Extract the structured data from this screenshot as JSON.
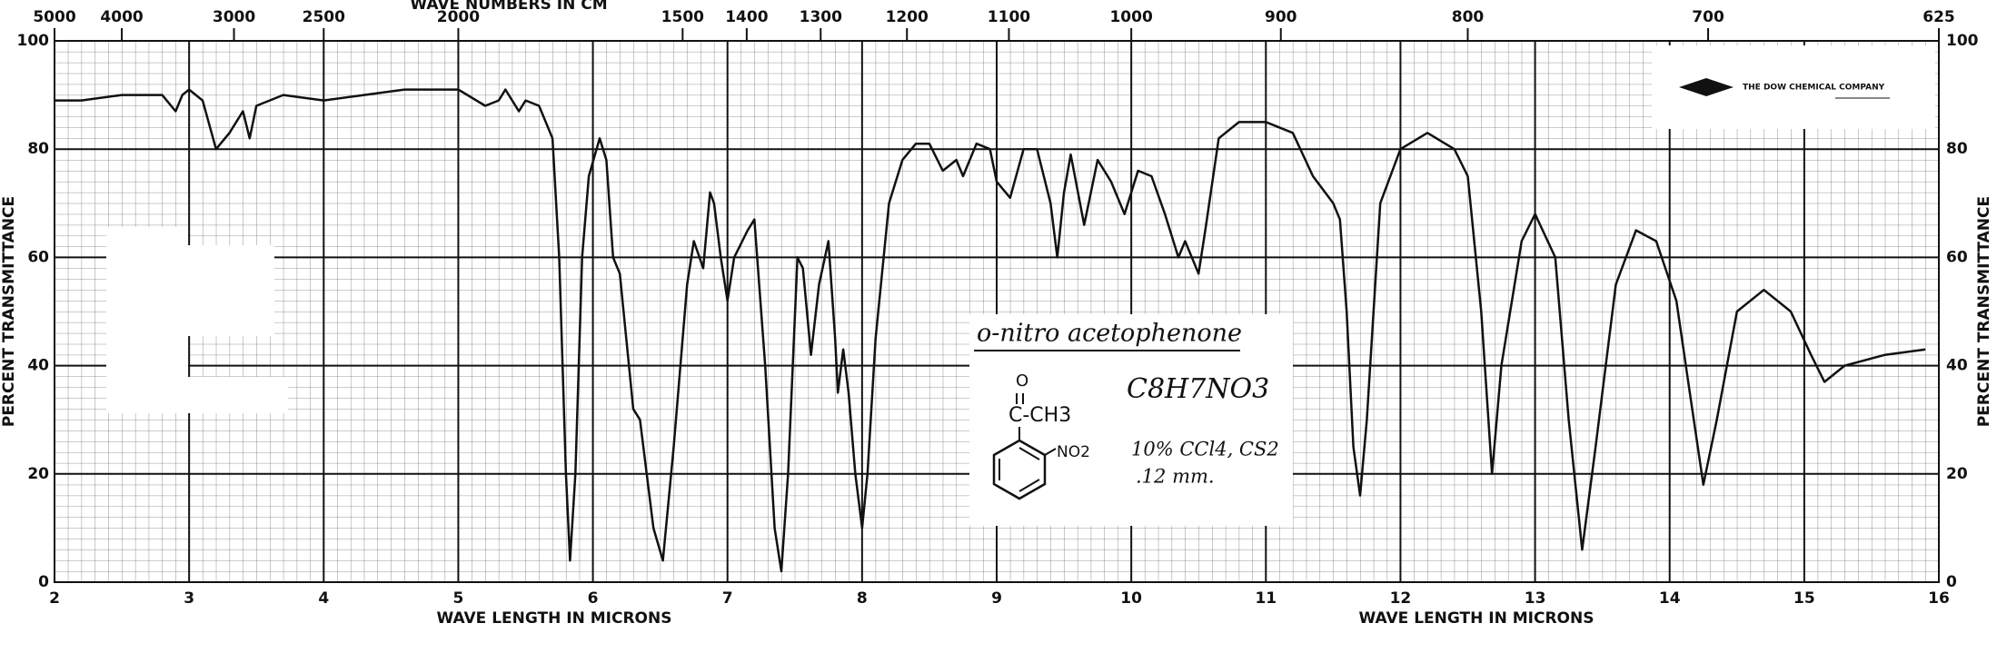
{
  "chart_data": {
    "type": "line",
    "x_label": "WAVE LENGTH IN MICRONS",
    "y_label": "PERCENT TRANSMITTANCE",
    "x2_label": "WAVE NUMBERS IN CM",
    "xlim": [
      2,
      16
    ],
    "xticks": [
      2,
      3,
      4,
      5,
      6,
      7,
      8,
      9,
      10,
      11,
      12,
      13,
      14,
      15,
      16
    ],
    "ylim": [
      0,
      100
    ],
    "yticks": [
      0,
      20,
      40,
      60,
      80,
      100
    ],
    "x2lim": [
      5000,
      625
    ],
    "x2ticks": [
      5000,
      4000,
      3000,
      2500,
      2000,
      1500,
      1400,
      1300,
      1200,
      1100,
      1000,
      900,
      800,
      700,
      625
    ],
    "grid": true,
    "color": "#111111",
    "x": [
      2.0,
      2.2,
      2.5,
      2.8,
      2.9,
      2.95,
      3.0,
      3.1,
      3.2,
      3.3,
      3.4,
      3.45,
      3.5,
      3.7,
      4.0,
      4.3,
      4.6,
      5.0,
      5.2,
      5.3,
      5.35,
      5.45,
      5.5,
      5.6,
      5.7,
      5.75,
      5.8,
      5.83,
      5.87,
      5.92,
      5.97,
      6.05,
      6.1,
      6.15,
      6.2,
      6.3,
      6.35,
      6.45,
      6.52,
      6.6,
      6.7,
      6.75,
      6.82,
      6.87,
      6.9,
      6.95,
      7.0,
      7.05,
      7.15,
      7.2,
      7.28,
      7.35,
      7.4,
      7.45,
      7.52,
      7.56,
      7.62,
      7.68,
      7.75,
      7.8,
      7.82,
      7.86,
      7.9,
      7.95,
      8.0,
      8.04,
      8.1,
      8.2,
      8.3,
      8.4,
      8.5,
      8.6,
      8.7,
      8.75,
      8.85,
      8.95,
      9.0,
      9.1,
      9.2,
      9.3,
      9.4,
      9.45,
      9.5,
      9.55,
      9.65,
      9.75,
      9.85,
      9.95,
      10.05,
      10.15,
      10.25,
      10.35,
      10.4,
      10.45,
      10.5,
      10.55,
      10.65,
      10.8,
      11.0,
      11.2,
      11.35,
      11.5,
      11.55,
      11.6,
      11.65,
      11.7,
      11.75,
      11.85,
      12.0,
      12.2,
      12.4,
      12.5,
      12.6,
      12.68,
      12.75,
      12.9,
      13.0,
      13.15,
      13.25,
      13.35,
      13.45,
      13.6,
      13.75,
      13.9,
      14.05,
      14.15,
      14.25,
      14.35,
      14.5,
      14.7,
      14.9,
      15.05,
      15.15,
      15.3,
      15.6,
      15.9
    ],
    "values": [
      89,
      89,
      90,
      90,
      87,
      90,
      91,
      89,
      80,
      83,
      87,
      82,
      88,
      90,
      89,
      90,
      91,
      91,
      88,
      89,
      91,
      87,
      89,
      88,
      82,
      60,
      20,
      4,
      20,
      60,
      75,
      82,
      78,
      60,
      57,
      32,
      30,
      10,
      4,
      25,
      55,
      63,
      58,
      72,
      70,
      60,
      52,
      60,
      65,
      67,
      40,
      10,
      2,
      20,
      60,
      58,
      42,
      55,
      63,
      45,
      35,
      43,
      35,
      20,
      10,
      20,
      45,
      70,
      78,
      81,
      81,
      76,
      78,
      75,
      81,
      80,
      74,
      71,
      80,
      80,
      70,
      60,
      72,
      79,
      66,
      78,
      74,
      68,
      76,
      75,
      68,
      60,
      63,
      60,
      57,
      65,
      82,
      85,
      85,
      83,
      75,
      70,
      67,
      50,
      25,
      16,
      30,
      70,
      80,
      83,
      80,
      75,
      50,
      20,
      40,
      63,
      68,
      60,
      30,
      6,
      25,
      55,
      65,
      63,
      52,
      35,
      18,
      30,
      50,
      54,
      50,
      42,
      37,
      40,
      42,
      43
    ],
    "annotations": {
      "compound": "o-nitro acetophenone",
      "formula": "C8H7NO3",
      "solvent": "10% CCl4, CS2",
      "thickness": ".12 mm.",
      "carbonyl_o": "O",
      "acetyl": "C-CH3",
      "nitro": "NO2",
      "company": "THE DOW CHEMICAL COMPANY"
    }
  }
}
